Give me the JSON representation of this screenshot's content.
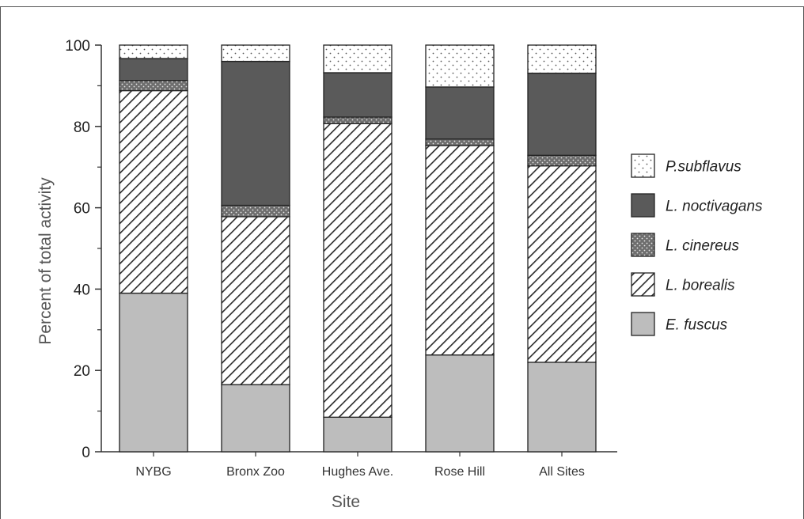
{
  "chart_data": {
    "type": "bar",
    "stacked": true,
    "xlabel": "Site",
    "ylabel": "Percent of total activity",
    "ylim": [
      0,
      100
    ],
    "yticks": [
      0,
      20,
      40,
      60,
      80,
      100
    ],
    "categories": [
      "NYBG",
      "Bronx Zoo",
      "Hughes Ave.",
      "Rose Hill",
      "All Sites"
    ],
    "series": [
      {
        "name": "E. fuscus",
        "fill": "#bdbdbd",
        "pattern": "solid",
        "values": [
          39.0,
          16.5,
          8.5,
          23.8,
          22.0
        ]
      },
      {
        "name": "L. borealis",
        "fill": "#ffffff",
        "pattern": "diagonal-hatch",
        "values": [
          49.8,
          41.3,
          72.2,
          51.5,
          48.3
        ]
      },
      {
        "name": "L. cinereus",
        "fill": "#6e6e6e",
        "pattern": "dots-on-dark",
        "values": [
          2.5,
          2.8,
          1.6,
          1.6,
          2.6
        ]
      },
      {
        "name": "L. noctivagans",
        "fill": "#5a5a5a",
        "pattern": "solid",
        "values": [
          5.4,
          35.4,
          10.9,
          12.8,
          20.2
        ]
      },
      {
        "name": "P.subflavus",
        "fill": "#ffffff",
        "pattern": "dots-on-light",
        "values": [
          3.3,
          4.0,
          6.8,
          10.3,
          6.9
        ]
      }
    ],
    "legend": {
      "position": "right",
      "order": [
        "P.subflavus",
        "L. noctivagans",
        "L. cinereus",
        "L. borealis",
        "E. fuscus"
      ]
    },
    "grid": false
  },
  "colors": {
    "axis": "#333333",
    "bar_outline": "#222222",
    "hatch_line": "#2a2a2a"
  }
}
